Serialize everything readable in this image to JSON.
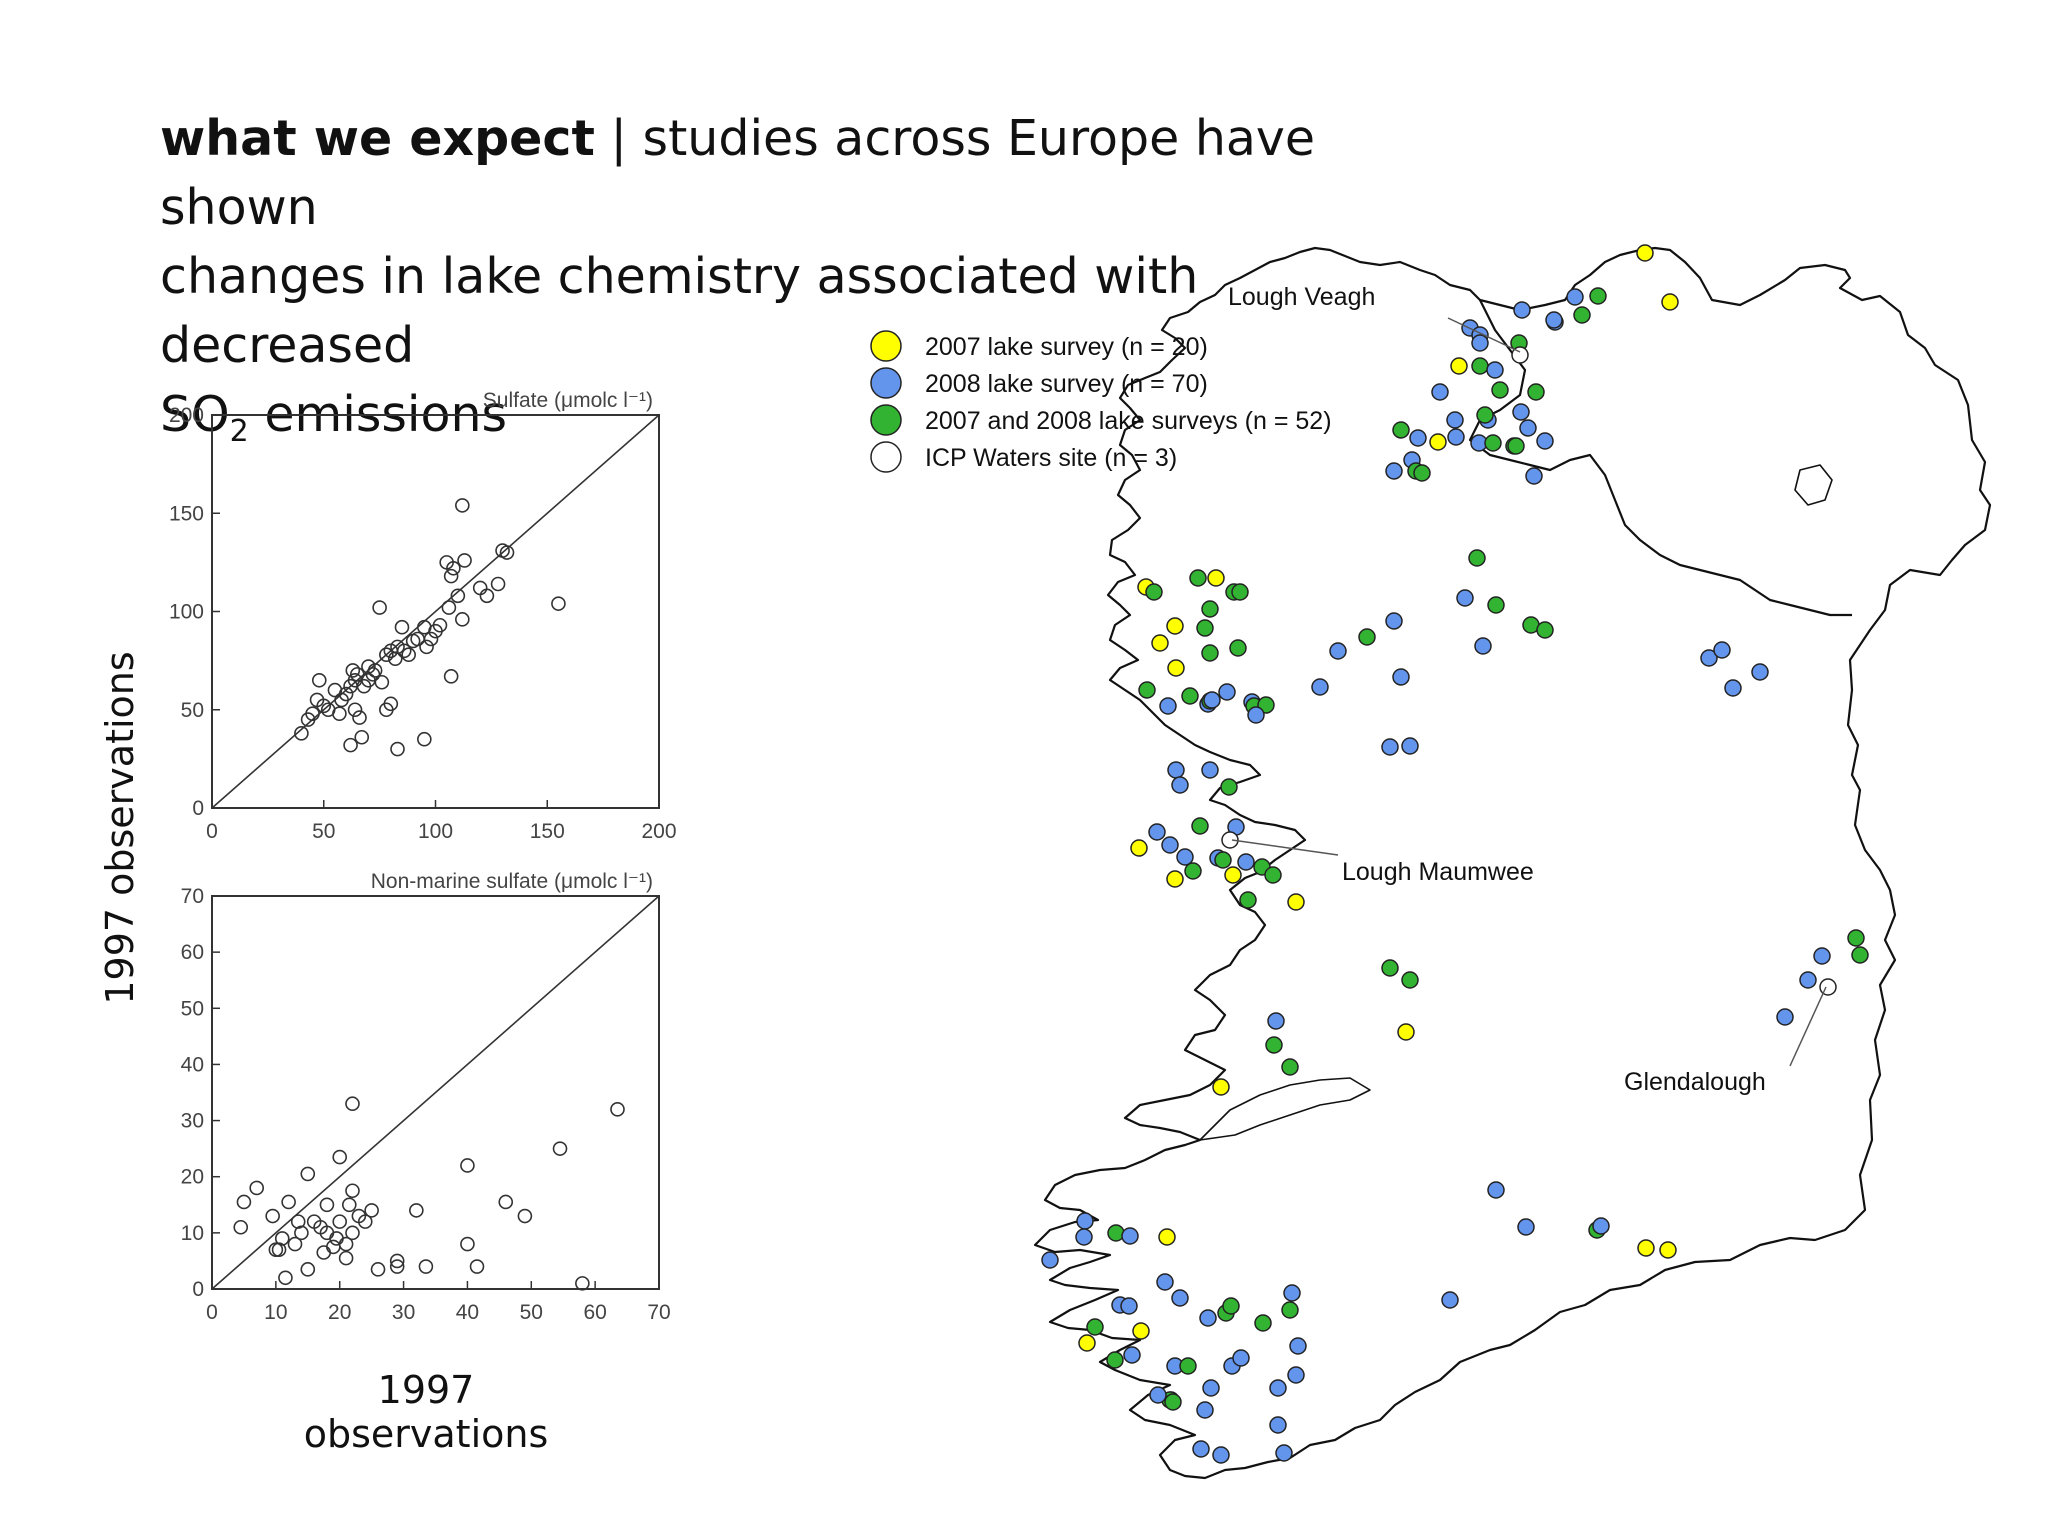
{
  "slide": {
    "title_bold": "what we expect",
    "title_sep": "|",
    "title_rest_line1": "studies across Europe have shown",
    "title_line2": "changes in lake chemistry associated with decreased",
    "title_so": "SO",
    "title_sub": "2",
    "title_end": "emissions",
    "ylabel": "1997 observations",
    "xlabel": "1997 observations"
  },
  "chart_data": [
    {
      "type": "scatter",
      "title": "Sulfate (μmolc l⁻¹)",
      "xlim": [
        0,
        200
      ],
      "ylim": [
        0,
        200
      ],
      "xticks": [
        0,
        50,
        100,
        150,
        200
      ],
      "yticks": [
        0,
        50,
        100,
        150,
        200
      ],
      "reference_line": "1:1",
      "marker": "open-circle",
      "points": [
        [
          40,
          38
        ],
        [
          43,
          45
        ],
        [
          45,
          48
        ],
        [
          48,
          65
        ],
        [
          47,
          55
        ],
        [
          50,
          52
        ],
        [
          55,
          60
        ],
        [
          52,
          50
        ],
        [
          58,
          55
        ],
        [
          60,
          58
        ],
        [
          62,
          62
        ],
        [
          63,
          70
        ],
        [
          65,
          68
        ],
        [
          64,
          50
        ],
        [
          66,
          46
        ],
        [
          68,
          62
        ],
        [
          70,
          65
        ],
        [
          72,
          68
        ],
        [
          73,
          70
        ],
        [
          75,
          102
        ],
        [
          76,
          64
        ],
        [
          78,
          78
        ],
        [
          80,
          80
        ],
        [
          82,
          76
        ],
        [
          83,
          82
        ],
        [
          85,
          92
        ],
        [
          86,
          80
        ],
        [
          88,
          78
        ],
        [
          90,
          85
        ],
        [
          92,
          86
        ],
        [
          95,
          92
        ],
        [
          96,
          82
        ],
        [
          98,
          86
        ],
        [
          100,
          90
        ],
        [
          102,
          93
        ],
        [
          105,
          125
        ],
        [
          106,
          102
        ],
        [
          107,
          118
        ],
        [
          108,
          122
        ],
        [
          110,
          108
        ],
        [
          112,
          96
        ],
        [
          112,
          154
        ],
        [
          113,
          126
        ],
        [
          120,
          112
        ],
        [
          123,
          108
        ],
        [
          128,
          114
        ],
        [
          130,
          131
        ],
        [
          132,
          130
        ],
        [
          155,
          104
        ],
        [
          62,
          32
        ],
        [
          67,
          36
        ],
        [
          83,
          30
        ],
        [
          95,
          35
        ],
        [
          80,
          53
        ],
        [
          78,
          50
        ],
        [
          70,
          72
        ],
        [
          57,
          48
        ],
        [
          64,
          65
        ],
        [
          107,
          67
        ]
      ]
    },
    {
      "type": "scatter",
      "title": "Non-marine sulfate (μmolc l⁻¹)",
      "xlim": [
        0,
        70
      ],
      "ylim": [
        0,
        70
      ],
      "xticks": [
        0,
        10,
        20,
        30,
        40,
        50,
        60,
        70
      ],
      "yticks": [
        0,
        10,
        20,
        30,
        40,
        50,
        60,
        70
      ],
      "reference_line": "1:1",
      "marker": "open-circle",
      "points": [
        [
          4.5,
          11
        ],
        [
          5,
          15.5
        ],
        [
          7,
          18
        ],
        [
          9.5,
          13
        ],
        [
          10,
          7
        ],
        [
          11,
          9
        ],
        [
          11.5,
          2
        ],
        [
          12,
          15.5
        ],
        [
          13,
          8
        ],
        [
          15,
          3.5
        ],
        [
          15,
          20.5
        ],
        [
          16,
          12
        ],
        [
          17,
          11
        ],
        [
          17.5,
          6.5
        ],
        [
          18,
          10
        ],
        [
          18,
          15
        ],
        [
          19,
          7.5
        ],
        [
          20,
          12
        ],
        [
          20,
          23.5
        ],
        [
          21,
          5.5
        ],
        [
          21.5,
          15
        ],
        [
          22,
          33
        ],
        [
          22,
          17.5
        ],
        [
          22,
          10
        ],
        [
          23,
          13
        ],
        [
          25,
          14
        ],
        [
          26,
          3.5
        ],
        [
          29,
          4
        ],
        [
          29,
          5
        ],
        [
          32,
          14
        ],
        [
          33.5,
          4
        ],
        [
          40,
          22
        ],
        [
          40,
          8
        ],
        [
          41.5,
          4
        ],
        [
          46,
          15.5
        ],
        [
          49,
          13
        ],
        [
          54.5,
          25
        ],
        [
          58,
          1
        ],
        [
          63.5,
          32
        ],
        [
          14,
          10
        ],
        [
          19.5,
          9
        ],
        [
          21,
          8
        ],
        [
          24,
          12
        ],
        [
          10.5,
          7
        ],
        [
          13.5,
          12
        ]
      ]
    }
  ],
  "map": {
    "legend": [
      {
        "label": "2007 lake survey (n = 20)",
        "color": "#ffff00"
      },
      {
        "label": "2008 lake survey (n = 70)",
        "color": "#6495ed"
      },
      {
        "label": "2007 and 2008 lake surveys (n = 52)",
        "color": "#32b432"
      },
      {
        "label": "ICP Waters site (n = 3)",
        "color": "#ffffff"
      }
    ],
    "sites": [
      {
        "label": "Lough Veagh"
      },
      {
        "label": "Lough Maumwee"
      },
      {
        "label": "Glendalough"
      }
    ]
  }
}
